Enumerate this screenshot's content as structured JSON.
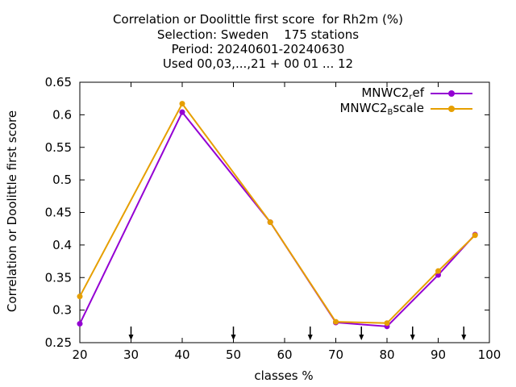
{
  "chart_data": {
    "type": "line",
    "title": "Correlation or Doolittle first score  for Rh2m (%)",
    "subtitle_lines": [
      "Selection: Sweden    175 stations",
      "Period: 20240601-20240630",
      "Used 00,03,...,21 + 00 01 ... 12"
    ],
    "xlabel": "classes %",
    "ylabel": "Correlation or Doolittle first score",
    "xlim": [
      20,
      100
    ],
    "ylim": [
      0.25,
      0.65
    ],
    "xticks": [
      20,
      30,
      40,
      50,
      60,
      70,
      80,
      90,
      100
    ],
    "yticks": [
      0.25,
      0.3,
      0.35,
      0.4,
      0.45,
      0.5,
      0.55,
      0.6,
      0.65
    ],
    "arrow_markers_x": [
      30,
      50,
      65,
      75,
      85,
      95
    ],
    "legend_position": "top-right",
    "series": [
      {
        "name": "MNWC2_ref",
        "legend_main": "MNWC2",
        "legend_sub": "r",
        "legend_rest": "ef",
        "color": "#9400d3",
        "x": [
          20,
          40,
          57.2,
          70,
          80,
          90,
          97.2
        ],
        "y": [
          0.279,
          0.604,
          0.435,
          0.281,
          0.275,
          0.354,
          0.416
        ]
      },
      {
        "name": "MNWC2_Bscale",
        "legend_main": "MNWC2",
        "legend_sub": "B",
        "legend_rest": "scale",
        "color": "#e69f00",
        "x": [
          20,
          40,
          57.2,
          70,
          80,
          90,
          97.2
        ],
        "y": [
          0.321,
          0.617,
          0.435,
          0.282,
          0.28,
          0.36,
          0.415
        ]
      }
    ]
  }
}
